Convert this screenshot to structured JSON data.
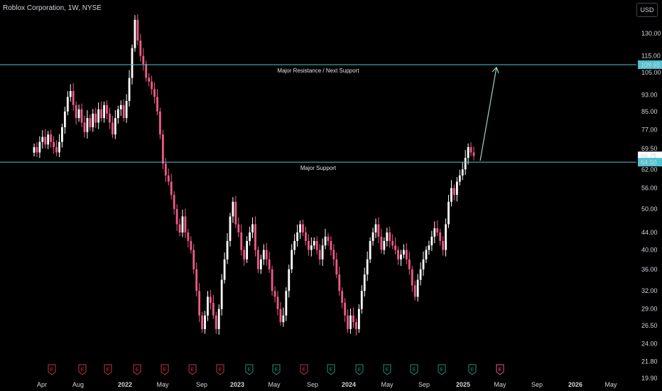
{
  "header": {
    "title": "Roblox Corporation, 1W, NYSE",
    "currency": "USD"
  },
  "colors": {
    "up": "#ffffff",
    "down": "#f05a85",
    "level": "#4fc3d1",
    "arrow": "#9ad7c4",
    "earn_red": "#c2334d",
    "earn_green": "#1f8f7a",
    "earn_pink": "#e5598a"
  },
  "chart_data": {
    "type": "candlestick",
    "title": "Roblox Corporation, 1W, NYSE",
    "y_scale": "log",
    "ylim": [
      19.9,
      150
    ],
    "y_ticks": [
      "130.00",
      "115.00",
      "105.00",
      "93.00",
      "85.00",
      "77.00",
      "69.50",
      "62.00",
      "56.00",
      "50.00",
      "44.00",
      "40.00",
      "36.00",
      "32.00",
      "29.00",
      "26.50",
      "24.00",
      "21.80",
      "19.90"
    ],
    "x_ticks": [
      "Apr",
      "Aug",
      "2022",
      "May",
      "Sep",
      "2023",
      "May",
      "Sep",
      "2024",
      "May",
      "Sep",
      "2025",
      "May",
      "Sep",
      "2026",
      "May"
    ],
    "price_labels": [
      {
        "value": "109.65",
        "style": "level"
      },
      {
        "value": "66.75",
        "style": "last"
      },
      {
        "value": "64.50",
        "style": "level"
      }
    ],
    "levels": [
      {
        "name": "Major Resistance / Next Support",
        "value": 109.65
      },
      {
        "name": "Major Support",
        "value": 64.5
      }
    ],
    "projection": {
      "from": {
        "date": "2025-03",
        "value": 65
      },
      "to": {
        "date": "2025-05",
        "value": 108
      }
    },
    "earnings": [
      "R",
      "R",
      "R",
      "R",
      "R",
      "R",
      "R",
      "G",
      "G",
      "R",
      "G",
      "G",
      "G",
      "G",
      "G",
      "G",
      "P"
    ],
    "weekly_close": [
      70,
      68,
      72,
      74,
      71,
      75,
      72,
      70,
      68,
      72,
      78,
      85,
      92,
      95,
      88,
      82,
      86,
      80,
      76,
      82,
      78,
      84,
      80,
      86,
      82,
      88,
      84,
      80,
      75,
      82,
      86,
      88,
      82,
      90,
      102,
      120,
      140,
      125,
      115,
      110,
      102,
      100,
      96,
      92,
      85,
      75,
      64,
      60,
      58,
      54,
      50,
      46,
      44,
      48,
      44,
      42,
      40,
      36,
      32,
      28,
      26,
      28,
      31,
      30,
      28,
      26,
      29,
      34,
      38,
      42,
      48,
      52,
      46,
      44,
      40,
      38,
      42,
      44,
      46,
      40,
      36,
      38,
      40,
      38,
      36,
      32,
      31,
      29,
      27,
      28,
      32,
      36,
      40,
      42,
      44,
      46,
      44,
      42,
      40,
      41,
      42,
      40,
      38,
      41,
      43,
      42,
      40,
      38,
      35,
      32,
      30,
      28,
      26,
      28,
      27,
      26,
      29,
      32,
      35,
      38,
      42,
      44,
      46,
      43,
      40,
      42,
      44,
      42,
      41,
      40,
      38,
      39,
      40,
      38,
      36,
      33,
      31,
      34,
      36,
      38,
      40,
      41,
      43,
      45,
      44,
      42,
      40,
      46,
      52,
      56,
      54,
      58,
      60,
      62,
      66,
      70,
      68,
      66.75
    ]
  }
}
